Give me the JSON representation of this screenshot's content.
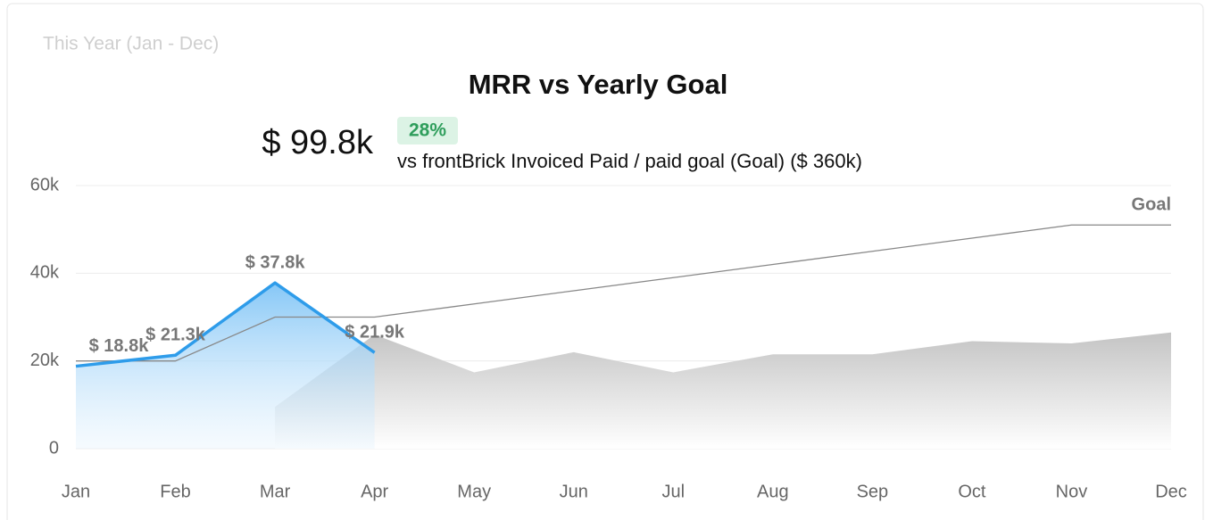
{
  "chart_data": {
    "type": "line",
    "subtitle": "This Year (Jan - Dec)",
    "title": "MRR vs Yearly Goal",
    "kpi": "$ 99.8k",
    "kpi_change": "28%",
    "kpi_caption": "vs frontBrick Invoiced Paid / paid goal (Goal) ($ 360k)",
    "categories": [
      "Jan",
      "Feb",
      "Mar",
      "Apr",
      "May",
      "Jun",
      "Jul",
      "Aug",
      "Sep",
      "Oct",
      "Nov",
      "Dec"
    ],
    "series": [
      {
        "color": "#2e9cea",
        "values": [
          18.8,
          21.3,
          37.8,
          21.9,
          null,
          null,
          null,
          null,
          null,
          null,
          null,
          null
        ],
        "value_labels": [
          "$ 18.8k",
          "$ 21.3k",
          "$ 37.8k",
          "$ 21.9k",
          null,
          null,
          null,
          null,
          null,
          null,
          null,
          null
        ]
      },
      {
        "name": "Goal",
        "color": "#888888",
        "values": [
          20,
          20,
          30,
          30,
          33,
          36,
          39,
          42,
          45,
          48,
          51,
          51
        ]
      },
      {
        "color": "#cccccc",
        "values": [
          null,
          null,
          9.5,
          26,
          17.4,
          22,
          17.4,
          21.5,
          21.5,
          24.5,
          24,
          26.5
        ]
      }
    ],
    "ylim": [
      0,
      60
    ],
    "yticks": [
      0,
      {
        "value": 20,
        "label": "20k"
      },
      {
        "value": 40,
        "label": "40k"
      },
      {
        "value": 60,
        "label": "60k"
      }
    ],
    "grid": true
  }
}
